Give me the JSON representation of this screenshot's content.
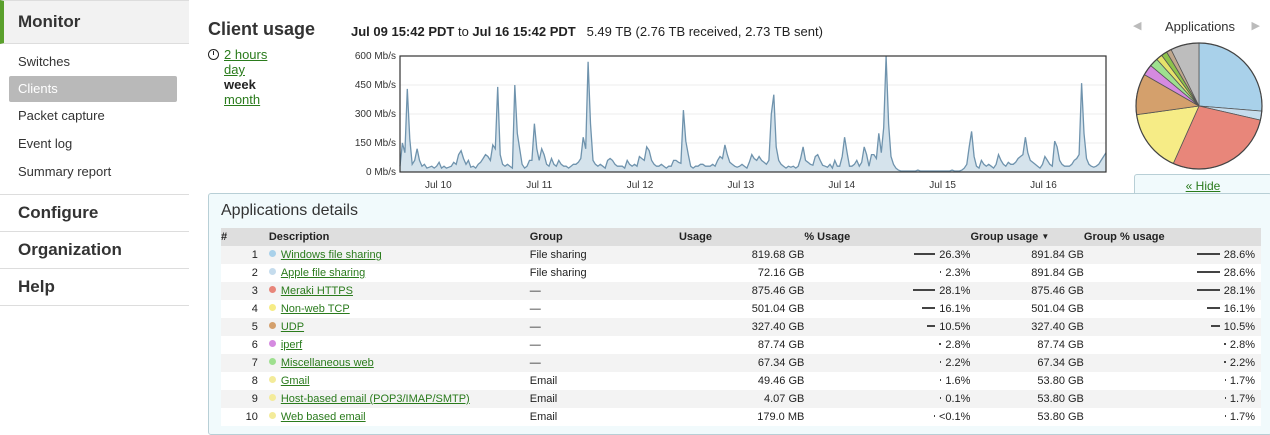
{
  "sidebar": {
    "monitor": "Monitor",
    "monitor_items": [
      "Switches",
      "Clients",
      "Packet capture",
      "Event log",
      "Summary report"
    ],
    "configure": "Configure",
    "organization": "Organization",
    "help": "Help"
  },
  "header": {
    "title": "Client usage",
    "ranges": [
      "2 hours",
      "day",
      "week",
      "month"
    ],
    "selected_range": "week",
    "date_from": "Jul 09 15:42 PDT",
    "date_to_word": "to",
    "date_to": "Jul 16 15:42 PDT",
    "totals": "5.49 TB (2.76 TB received, 2.73 TB sent)"
  },
  "chart_data": {
    "type": "area",
    "y_unit": "Mb/s",
    "yticks": [
      "600 Mb/s",
      "450 Mb/s",
      "300 Mb/s",
      "150 Mb/s",
      "0 Mb/s"
    ],
    "ylim": [
      0,
      600
    ],
    "xticks": [
      "Jul 10",
      "Jul 11",
      "Jul 12",
      "Jul 13",
      "Jul 14",
      "Jul 15",
      "Jul 16"
    ],
    "series": [
      {
        "values": [
          30,
          150,
          100,
          430,
          170,
          40,
          60,
          120,
          60,
          30,
          40,
          20,
          25,
          30,
          20,
          30,
          50,
          20,
          30,
          20,
          25,
          30,
          50,
          40,
          90,
          110,
          70,
          40,
          60,
          25,
          30,
          20,
          40,
          50,
          70,
          90,
          80,
          60,
          140,
          120,
          440,
          90,
          40,
          30,
          40,
          30,
          20,
          450,
          200,
          120,
          40,
          20,
          30,
          60,
          60,
          250,
          120,
          60,
          120,
          90,
          40,
          30,
          70,
          40,
          30,
          60,
          40,
          30,
          30,
          20,
          30,
          40,
          40,
          50,
          70,
          180,
          120,
          570,
          250,
          60,
          40,
          30,
          40,
          30,
          20,
          60,
          70,
          60,
          40,
          30,
          30,
          30,
          20,
          60,
          40,
          30,
          40,
          30,
          80,
          70,
          60,
          130,
          110,
          60,
          40,
          30,
          30,
          40,
          30,
          20,
          30,
          30,
          60,
          60,
          50,
          45,
          320,
          160,
          90,
          30,
          20,
          30,
          30,
          40,
          40,
          30,
          30,
          30,
          40,
          30,
          60,
          80,
          70,
          140,
          90,
          50,
          40,
          30,
          25,
          30,
          40,
          30,
          20,
          50,
          90,
          70,
          60,
          80,
          60,
          50,
          40,
          60,
          300,
          400,
          130,
          60,
          40,
          30,
          20,
          30,
          25,
          30,
          20,
          30,
          70,
          130,
          60,
          50,
          40,
          35,
          80,
          90,
          60,
          35,
          30,
          25,
          40,
          20,
          60,
          30,
          30,
          80,
          180,
          100,
          30,
          30,
          40,
          60,
          30,
          50,
          130,
          90,
          30,
          90,
          90,
          70,
          200,
          100,
          230,
          600,
          250,
          80,
          40,
          20,
          10,
          5,
          5,
          5,
          5,
          5,
          5,
          5,
          10,
          5,
          5,
          5,
          5,
          5,
          5,
          5,
          5,
          5,
          5,
          5,
          5,
          5,
          10,
          5,
          5,
          5,
          10,
          20,
          40,
          130,
          210,
          80,
          30,
          20,
          60,
          40,
          30,
          40,
          30,
          20,
          40,
          90,
          60,
          40,
          30,
          50,
          40,
          40,
          50,
          70,
          80,
          90,
          180,
          100,
          60,
          50,
          40,
          30,
          20,
          40,
          80,
          60,
          40,
          30,
          160,
          130,
          60,
          40,
          30,
          30,
          30,
          40,
          60,
          70,
          90,
          460,
          200,
          70,
          40,
          30,
          25,
          30,
          40,
          60,
          80,
          100
        ]
      }
    ]
  },
  "pie": {
    "title": "Applications",
    "slices": [
      {
        "value": 26.3,
        "color": "#a9d1ea"
      },
      {
        "value": 2.3,
        "color": "#c5dced"
      },
      {
        "value": 28.1,
        "color": "#e8867a"
      },
      {
        "value": 16.1,
        "color": "#f6ec86"
      },
      {
        "value": 10.5,
        "color": "#d4a06c"
      },
      {
        "value": 2.8,
        "color": "#d58ae0"
      },
      {
        "value": 2.2,
        "color": "#9ee08f"
      },
      {
        "value": 1.6,
        "color": "#e6e26a"
      },
      {
        "value": 1.5,
        "color": "#8dc24a"
      },
      {
        "value": 1.3,
        "color": "#c0a78c"
      },
      {
        "value": 7.3,
        "color": "#bdbdbd"
      }
    ],
    "hide_link": "« Hide"
  },
  "details": {
    "title": "Applications details",
    "columns": {
      "idx": "#",
      "desc": "Description",
      "group": "Group",
      "usage": "Usage",
      "pct": "% Usage",
      "guse": "Group usage",
      "gpct": "Group % usage"
    },
    "rows": [
      {
        "idx": "1",
        "desc": "Windows file sharing",
        "color": "#a9d1ea",
        "group": "File sharing",
        "usage": "819.68 GB",
        "pct": "26.3%",
        "pct_val": 26.3,
        "guse": "891.84 GB",
        "gpct": "28.6%",
        "gpct_val": 28.6
      },
      {
        "idx": "2",
        "desc": "Apple file sharing",
        "color": "#c5dced",
        "group": "File sharing",
        "usage": "72.16 GB",
        "pct": "2.3%",
        "pct_val": 2.3,
        "guse": "891.84 GB",
        "gpct": "28.6%",
        "gpct_val": 28.6
      },
      {
        "idx": "3",
        "desc": "Meraki HTTPS",
        "color": "#e8867a",
        "group": "—",
        "usage": "875.46 GB",
        "pct": "28.1%",
        "pct_val": 28.1,
        "guse": "875.46 GB",
        "gpct": "28.1%",
        "gpct_val": 28.1
      },
      {
        "idx": "4",
        "desc": "Non-web TCP",
        "color": "#f6ec86",
        "group": "—",
        "usage": "501.04 GB",
        "pct": "16.1%",
        "pct_val": 16.1,
        "guse": "501.04 GB",
        "gpct": "16.1%",
        "gpct_val": 16.1
      },
      {
        "idx": "5",
        "desc": "UDP",
        "color": "#d4a06c",
        "group": "—",
        "usage": "327.40 GB",
        "pct": "10.5%",
        "pct_val": 10.5,
        "guse": "327.40 GB",
        "gpct": "10.5%",
        "gpct_val": 10.5
      },
      {
        "idx": "6",
        "desc": "iperf",
        "color": "#d58ae0",
        "group": "—",
        "usage": "87.74 GB",
        "pct": "2.8%",
        "pct_val": 2.8,
        "guse": "87.74 GB",
        "gpct": "2.8%",
        "gpct_val": 2.8
      },
      {
        "idx": "7",
        "desc": "Miscellaneous web",
        "color": "#9ee08f",
        "group": "—",
        "usage": "67.34 GB",
        "pct": "2.2%",
        "pct_val": 2.2,
        "guse": "67.34 GB",
        "gpct": "2.2%",
        "gpct_val": 2.2
      },
      {
        "idx": "8",
        "desc": "Gmail",
        "color": "#f3eb9a",
        "group": "Email",
        "usage": "49.46 GB",
        "pct": "1.6%",
        "pct_val": 1.6,
        "guse": "53.80 GB",
        "gpct": "1.7%",
        "gpct_val": 1.7
      },
      {
        "idx": "9",
        "desc": "Host-based email (POP3/IMAP/SMTP)",
        "color": "#f3eb9a",
        "group": "Email",
        "usage": "4.07 GB",
        "pct": "0.1%",
        "pct_val": 0.1,
        "guse": "53.80 GB",
        "gpct": "1.7%",
        "gpct_val": 1.7
      },
      {
        "idx": "10",
        "desc": "Web based email",
        "color": "#f3eb9a",
        "group": "Email",
        "usage": "179.0 MB",
        "pct": "<0.1%",
        "pct_val": 0.05,
        "guse": "53.80 GB",
        "gpct": "1.7%",
        "gpct_val": 1.7
      }
    ]
  }
}
